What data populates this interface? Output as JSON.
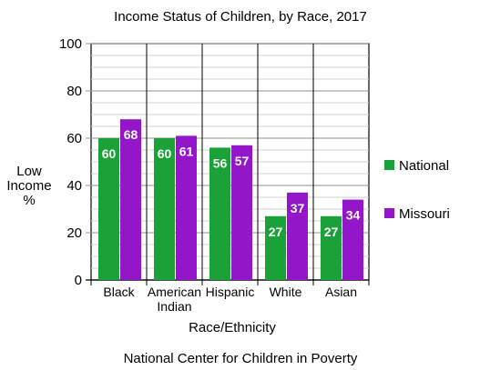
{
  "chart_data": {
    "type": "bar",
    "title": "Income Status of Children, by Race, 2017",
    "categories": [
      [
        "Black"
      ],
      [
        "American",
        "Indian"
      ],
      [
        "Hispanic"
      ],
      [
        "White"
      ],
      [
        "Asian"
      ]
    ],
    "series": [
      {
        "name": "National",
        "values": [
          60,
          60,
          56,
          27,
          27
        ],
        "color": "#1aa239"
      },
      {
        "name": "Missouri",
        "values": [
          68,
          61,
          57,
          37,
          34
        ],
        "color": "#9317c9"
      }
    ],
    "xlabel": "Race/Ethnicity",
    "ylabel": [
      "Low",
      "Income",
      "%"
    ],
    "ylim": [
      0,
      100
    ],
    "yticks": [
      0,
      20,
      40,
      60,
      80,
      100
    ],
    "grid": true,
    "legend_position": "right",
    "data_labels": true,
    "source": "National Center for Children in Poverty"
  }
}
